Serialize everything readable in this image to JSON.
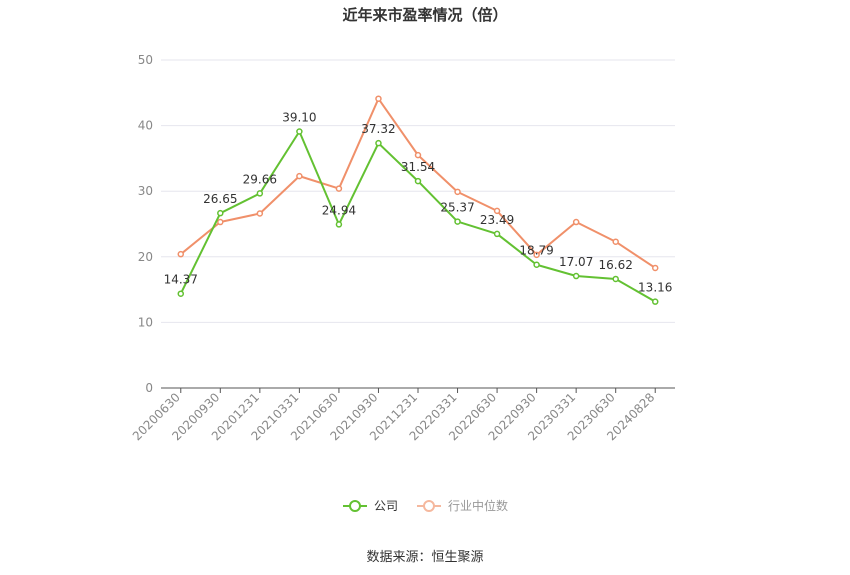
{
  "title": "近年来市盈率情况（倍）",
  "source": "数据来源：恒生聚源",
  "chart_data": {
    "type": "line",
    "title": "近年来市盈率情况（倍）",
    "categories": [
      "20200630",
      "20200930",
      "20201231",
      "20210331",
      "20210630",
      "20210930",
      "20211231",
      "20220331",
      "20220630",
      "20220930",
      "20230331",
      "20230630",
      "20240828"
    ],
    "ylim": [
      0,
      50
    ],
    "yticks": [
      0,
      10,
      20,
      30,
      40,
      50
    ],
    "grid": true,
    "legend_position": "bottom",
    "series": [
      {
        "name": "公司",
        "color": "#63c132",
        "values": [
          14.37,
          26.65,
          29.66,
          39.1,
          24.94,
          37.32,
          31.54,
          25.37,
          23.49,
          18.79,
          17.07,
          16.62,
          13.16
        ],
        "labels": [
          "14.37",
          "26.65",
          "29.66",
          "39.10",
          "24.94",
          "37.32",
          "31.54",
          "25.37",
          "23.49",
          "18.79",
          "17.07",
          "16.62",
          "13.16"
        ]
      },
      {
        "name": "行业中位数",
        "color": "#f0906a",
        "values": [
          20.4,
          25.3,
          26.6,
          32.3,
          30.4,
          44.1,
          35.5,
          29.9,
          27.0,
          20.3,
          25.3,
          22.3,
          18.3
        ]
      }
    ]
  }
}
